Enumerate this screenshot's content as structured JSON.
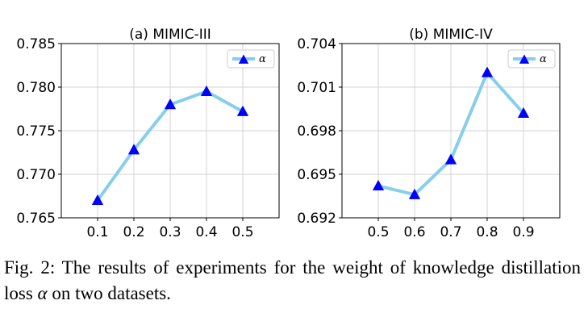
{
  "caption": {
    "prefix": "Fig. 2: The results of experiments for the weight of knowledge distillation loss",
    "symbol": "α",
    "suffix": "on two datasets."
  },
  "colors": {
    "line": "#87ceeb",
    "marker": "#0000ff",
    "grid": "#d3d3d3"
  },
  "chart_data": [
    {
      "type": "line",
      "title": "(a) MIMIC-III",
      "x": [
        0.1,
        0.2,
        0.3,
        0.4,
        0.5
      ],
      "x_tick_labels": [
        "0.1",
        "0.2",
        "0.3",
        "0.4",
        "0.5"
      ],
      "y_ticks": [
        0.765,
        0.77,
        0.775,
        0.78,
        0.785
      ],
      "y_tick_labels": [
        "0.765",
        "0.770",
        "0.775",
        "0.780",
        "0.785"
      ],
      "ylim": [
        0.765,
        0.785
      ],
      "grid": true,
      "legend": "top-right",
      "series": [
        {
          "name": "α",
          "marker": "triangle",
          "values": [
            0.767,
            0.7728,
            0.778,
            0.7795,
            0.7772
          ]
        }
      ]
    },
    {
      "type": "line",
      "title": "(b) MIMIC-IV",
      "x": [
        0.5,
        0.6,
        0.7,
        0.8,
        0.9
      ],
      "x_tick_labels": [
        "0.5",
        "0.6",
        "0.7",
        "0.8",
        "0.9"
      ],
      "y_ticks": [
        0.692,
        0.695,
        0.698,
        0.701,
        0.704
      ],
      "y_tick_labels": [
        "0.692",
        "0.695",
        "0.698",
        "0.701",
        "0.704"
      ],
      "ylim": [
        0.692,
        0.704
      ],
      "grid": true,
      "legend": "top-right",
      "series": [
        {
          "name": "α",
          "marker": "triangle",
          "values": [
            0.6942,
            0.6936,
            0.696,
            0.702,
            0.6992
          ]
        }
      ]
    }
  ]
}
